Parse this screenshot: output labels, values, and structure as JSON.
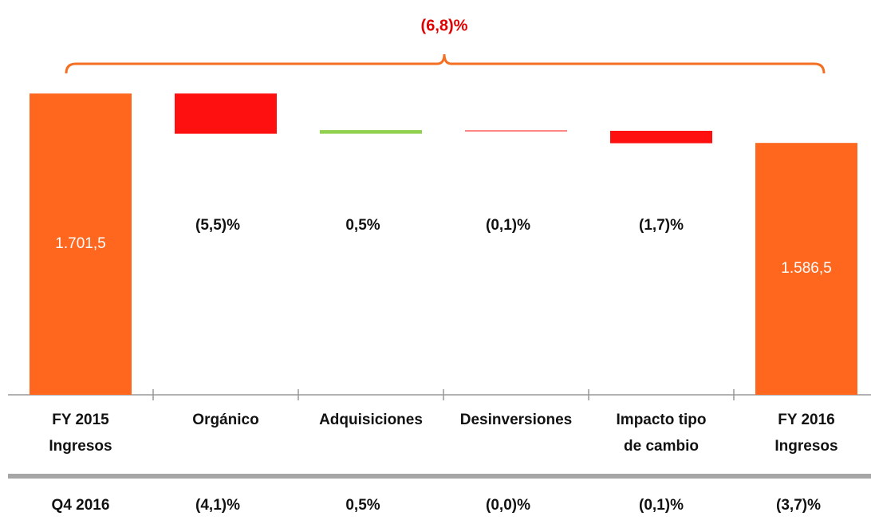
{
  "chart_data": {
    "type": "waterfall",
    "title": "(6,8)%",
    "title_value": -6.8,
    "categories": [
      [
        "FY 2015",
        "Ingresos"
      ],
      [
        "Orgánico"
      ],
      [
        "Adquisiciones"
      ],
      [
        "Desinversiones"
      ],
      [
        "Impacto tipo",
        "de cambio"
      ],
      [
        "FY 2016",
        "Ingresos"
      ]
    ],
    "values": [
      1701.5,
      -93.6,
      8.5,
      -1.7,
      -28.9,
      1586.5
    ],
    "totals": [
      true,
      false,
      false,
      false,
      false,
      true
    ],
    "value_labels": [
      "1.701,5",
      null,
      null,
      null,
      null,
      "1.586,5"
    ],
    "colors": [
      "#ff671f",
      "#ff1010",
      "#92d050",
      "#ff7f7f",
      "#ff1010",
      "#ff671f"
    ],
    "change_pct": [
      null,
      -5.5,
      0.5,
      -0.1,
      -1.7,
      null
    ],
    "change_labels": [
      null,
      "(5,5)%",
      "0,5%",
      "(0,1)%",
      "(1,7)%",
      null
    ],
    "ylim": [
      1000,
      1780
    ],
    "q4": {
      "label": "Q4 2016",
      "values": [
        -4.1,
        0.5,
        0.0,
        -0.1,
        -3.7
      ],
      "labels": [
        "(4,1)%",
        "0,5%",
        "(0,0)%",
        "(0,1)%",
        "(3,7)%"
      ]
    }
  }
}
